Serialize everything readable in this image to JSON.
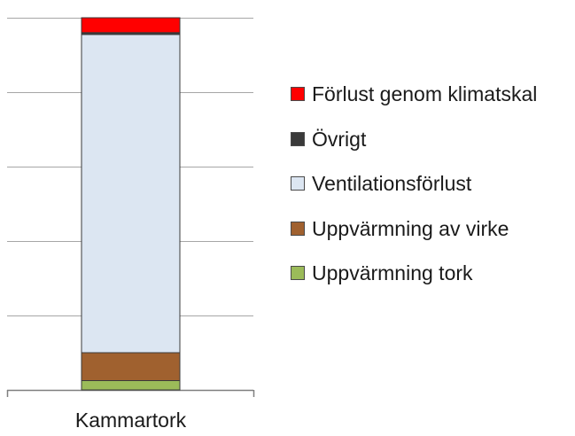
{
  "chart_data": {
    "type": "bar",
    "stacked": true,
    "categories": [
      "Kammartork"
    ],
    "series": [
      {
        "name": "Uppvärmning tork",
        "values": [
          2.5
        ],
        "color": "#9bbb59"
      },
      {
        "name": "Uppvärmning av virke",
        "values": [
          7.5
        ],
        "color": "#a0612f"
      },
      {
        "name": "Ventilationsförlust",
        "values": [
          85.5
        ],
        "color": "#dce6f2"
      },
      {
        "name": "Övrigt",
        "values": [
          0.5
        ],
        "color": "#3a3a3a"
      },
      {
        "name": "Förlust genom klimatskal",
        "values": [
          4.0
        ],
        "color": "#ff0000"
      }
    ],
    "legend_order": [
      "Förlust genom klimatskal",
      "Övrigt",
      "Ventilationsförlust",
      "Uppvärmning av virke",
      "Uppvärmning tork"
    ],
    "ylim": [
      0,
      100
    ],
    "y_tick_values": [
      0,
      20,
      40,
      60,
      80,
      100
    ],
    "grid": true,
    "legend_position": "right",
    "title": "",
    "xlabel": "",
    "ylabel": ""
  }
}
